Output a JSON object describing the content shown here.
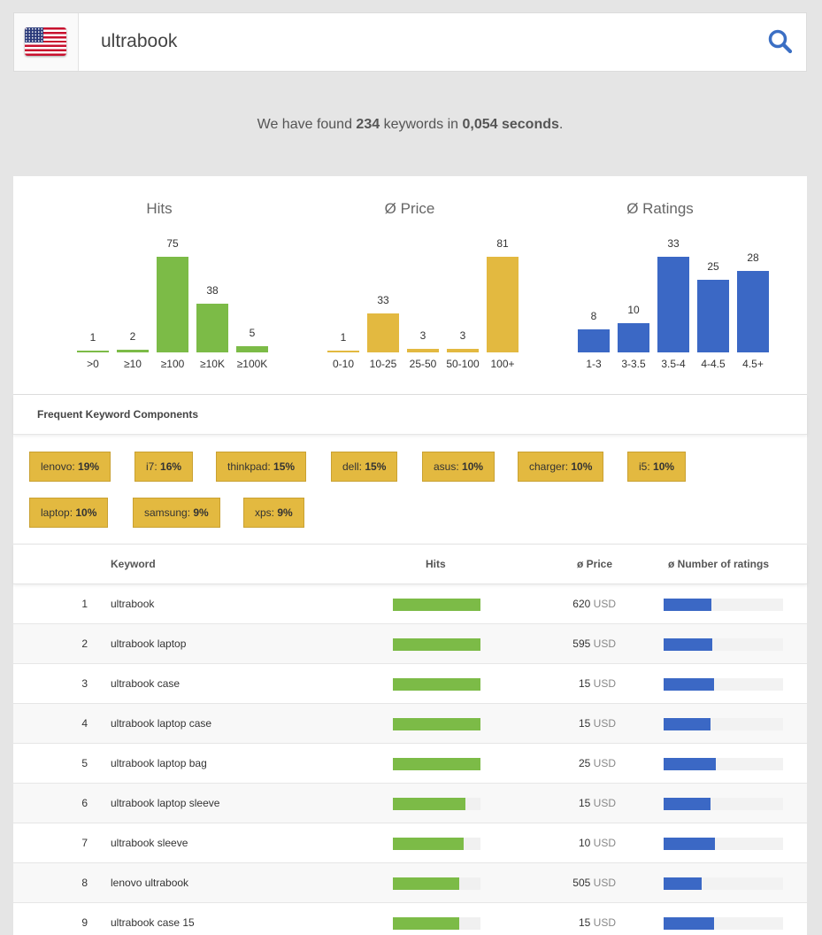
{
  "search": {
    "query": "ultrabook",
    "country_flag": "us-flag-icon"
  },
  "summary": {
    "prefix": "We have found ",
    "count": "234",
    "middle": " keywords in ",
    "time": "0,054 seconds",
    "suffix": "."
  },
  "chart_data": [
    {
      "type": "bar",
      "title": "Hits",
      "categories": [
        ">0",
        "≥10",
        "≥100",
        "≥10K",
        "≥100K"
      ],
      "values": [
        1,
        2,
        75,
        38,
        5
      ],
      "color": "#7cbb47"
    },
    {
      "type": "bar",
      "title": "Ø Price",
      "categories": [
        "0-10",
        "10-25",
        "25-50",
        "50-100",
        "100+"
      ],
      "values": [
        1,
        33,
        3,
        3,
        81
      ],
      "color": "#e3b940"
    },
    {
      "type": "bar",
      "title": "Ø Ratings",
      "categories": [
        "1-3",
        "3-3.5",
        "3.5-4",
        "4-4.5",
        "4.5+"
      ],
      "values": [
        8,
        10,
        33,
        25,
        28
      ],
      "color": "#3b68c5"
    }
  ],
  "components": {
    "title": "Frequent Keyword Components",
    "tags": [
      {
        "word": "lenovo",
        "pct": "19%"
      },
      {
        "word": "i7",
        "pct": "16%"
      },
      {
        "word": "thinkpad",
        "pct": "15%"
      },
      {
        "word": "dell",
        "pct": "15%"
      },
      {
        "word": "asus",
        "pct": "10%"
      },
      {
        "word": "charger",
        "pct": "10%"
      },
      {
        "word": "i5",
        "pct": "10%"
      },
      {
        "word": "laptop",
        "pct": "10%"
      },
      {
        "word": "samsung",
        "pct": "9%"
      },
      {
        "word": "xps",
        "pct": "9%"
      }
    ]
  },
  "table": {
    "headers": {
      "keyword": "Keyword",
      "hits": "Hits",
      "price": "ø Price",
      "ratings": "ø Number of ratings"
    },
    "currency": "USD",
    "rows": [
      {
        "n": "1",
        "keyword": "ultrabook",
        "hits": 1.0,
        "price": "620",
        "ratings": 0.4
      },
      {
        "n": "2",
        "keyword": "ultrabook laptop",
        "hits": 1.0,
        "price": "595",
        "ratings": 0.41
      },
      {
        "n": "3",
        "keyword": "ultrabook case",
        "hits": 1.0,
        "price": "15",
        "ratings": 0.42
      },
      {
        "n": "4",
        "keyword": "ultrabook laptop case",
        "hits": 1.0,
        "price": "15",
        "ratings": 0.39
      },
      {
        "n": "5",
        "keyword": "ultrabook laptop bag",
        "hits": 1.0,
        "price": "25",
        "ratings": 0.44
      },
      {
        "n": "6",
        "keyword": "ultrabook laptop sleeve",
        "hits": 0.83,
        "price": "15",
        "ratings": 0.39
      },
      {
        "n": "7",
        "keyword": "ultrabook sleeve",
        "hits": 0.81,
        "price": "10",
        "ratings": 0.43
      },
      {
        "n": "8",
        "keyword": "lenovo ultrabook",
        "hits": 0.76,
        "price": "505",
        "ratings": 0.32
      },
      {
        "n": "9",
        "keyword": "ultrabook case 15",
        "hits": 0.76,
        "price": "15",
        "ratings": 0.42
      }
    ]
  }
}
